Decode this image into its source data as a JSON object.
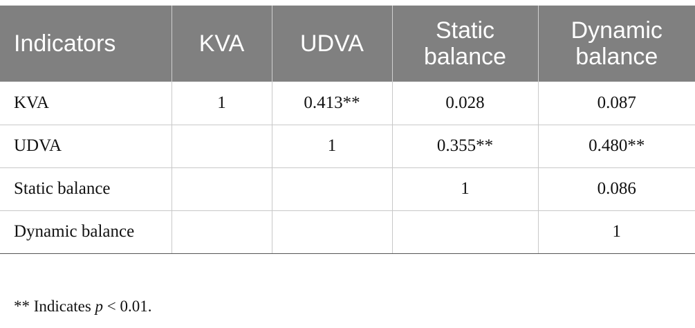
{
  "table": {
    "header": [
      "Indicators",
      "KVA",
      "UDVA",
      "Static balance",
      "Dynamic balance"
    ],
    "rows": [
      [
        "KVA",
        "1",
        "0.413**",
        "0.028",
        "0.087"
      ],
      [
        "UDVA",
        null,
        "1",
        "0.355**",
        "0.480**"
      ],
      [
        "Static balance",
        null,
        null,
        "1",
        "0.086"
      ],
      [
        "Dynamic balance",
        null,
        null,
        null,
        "1"
      ]
    ]
  },
  "footnote": {
    "prefix": "** Indicates ",
    "variable": "p",
    "suffix": " < 0.01."
  }
}
